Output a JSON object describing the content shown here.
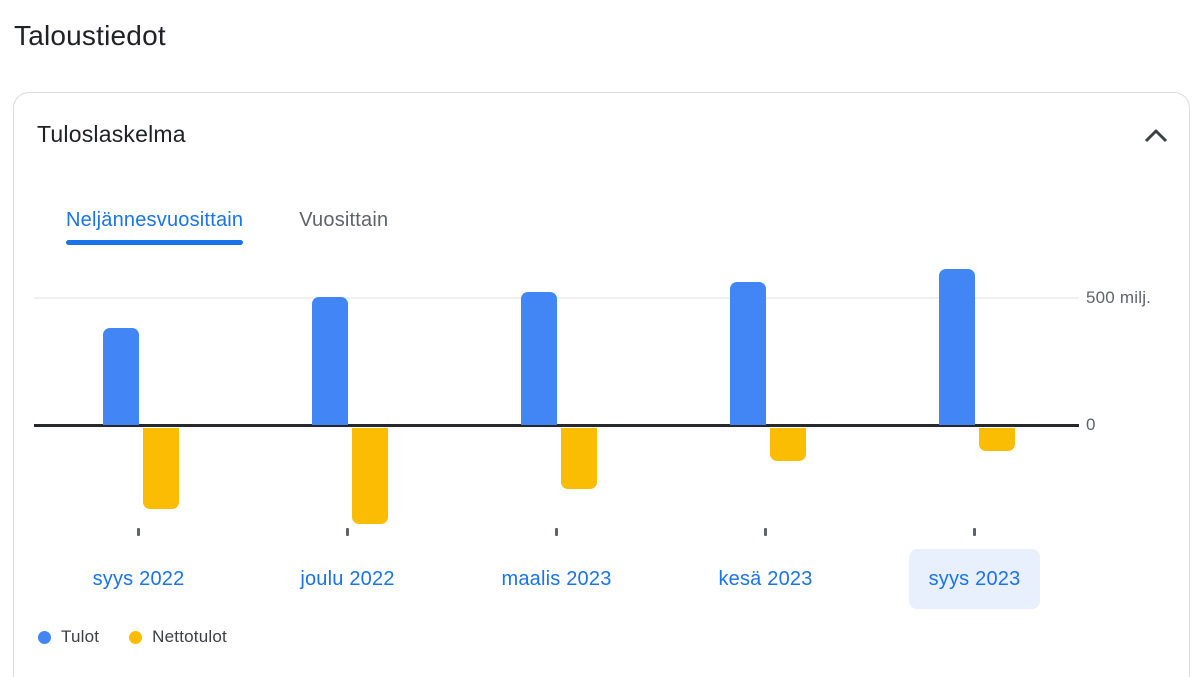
{
  "page": {
    "title": "Taloustiedot"
  },
  "card": {
    "title": "Tuloslaskelma",
    "tabs": [
      {
        "label": "Neljännesvuosittain",
        "active": true
      },
      {
        "label": "Vuosittain",
        "active": false
      }
    ]
  },
  "chart_data": {
    "type": "bar",
    "title": "Tuloslaskelma",
    "categories": [
      "syys 2022",
      "joulu 2022",
      "maalis 2023",
      "kesä 2023",
      "syys 2023"
    ],
    "series": [
      {
        "name": "Tulot",
        "color": "#4285f4",
        "values": [
          380,
          500,
          520,
          560,
          610
        ]
      },
      {
        "name": "Nettotulot",
        "color": "#fbbc04",
        "values": [
          -315,
          -375,
          -240,
          -130,
          -90
        ]
      }
    ],
    "unit": "milj.",
    "y_axis": {
      "position": "right",
      "range": [
        -450,
        650
      ],
      "ticks": [
        {
          "value": 500,
          "label": "500 milj."
        },
        {
          "value": 0,
          "label": "0"
        }
      ]
    },
    "selected_category": "syys 2023",
    "legend": {
      "position": "bottom-left"
    },
    "grid": {
      "horizontal_gridline_at": 500
    }
  },
  "colors": {
    "accent_blue": "#1a73e8",
    "bar_blue": "#4285f4",
    "bar_yellow": "#fbbc04",
    "selected_label_bg": "#e8f0fe",
    "text_primary": "#202124",
    "text_secondary": "#5f6368",
    "card_border": "#dadce0",
    "gridline": "#eef0f2",
    "zero_line": "#26282b"
  }
}
